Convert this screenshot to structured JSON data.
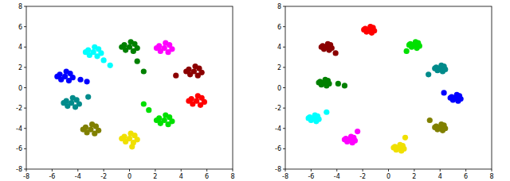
{
  "chart_data": [
    {
      "type": "scatter",
      "marker": "circle",
      "xlim": [
        -8,
        8
      ],
      "ylim": [
        -8,
        8
      ],
      "xticks": [
        -8,
        -6,
        -4,
        -2,
        0,
        2,
        4,
        6,
        8
      ],
      "yticks": [
        -8,
        -6,
        -4,
        -2,
        0,
        2,
        4,
        6,
        8
      ],
      "series": [
        {
          "color": "#008000",
          "x": [
            0,
            0.4,
            -0.4,
            0.3,
            -0.3,
            0.6,
            -0.6,
            0.1,
            0.6,
            1.1
          ],
          "values": [
            4,
            4.3,
            4.2,
            3.6,
            3.7,
            3.9,
            4,
            4.5,
            2.6,
            1.6
          ]
        },
        {
          "color": "#ff00ff",
          "x": [
            2.7,
            3.1,
            2.3,
            3,
            2.4,
            3.3,
            2.1,
            2.8
          ],
          "values": [
            3.9,
            4.2,
            4.1,
            3.5,
            3.6,
            3.8,
            3.9,
            4.4
          ]
        },
        {
          "color": "#8b0000",
          "x": [
            5,
            5.4,
            4.6,
            5.3,
            4.7,
            5.6,
            4.4,
            5.1,
            3.6
          ],
          "values": [
            1.6,
            1.9,
            1.8,
            1.2,
            1.3,
            1.5,
            1.6,
            2.1,
            1.2
          ]
        },
        {
          "color": "#ff0000",
          "x": [
            5.2,
            5.6,
            4.8,
            5.5,
            4.9,
            5.8,
            4.6,
            5.3
          ],
          "values": [
            -1.3,
            -1,
            -1.1,
            -1.7,
            -1.6,
            -1.4,
            -1.3,
            -0.8
          ]
        },
        {
          "color": "#00e000",
          "x": [
            2.7,
            3.1,
            2.3,
            3,
            2.4,
            3.3,
            2.1,
            2.8,
            1.5,
            1.1
          ],
          "values": [
            -3.2,
            -2.9,
            -3,
            -3.6,
            -3.5,
            -3.3,
            -3.2,
            -2.7,
            -2.2,
            -1.6
          ]
        },
        {
          "color": "#f0e000",
          "x": [
            0,
            0.4,
            -0.4,
            0.3,
            -0.3,
            0.6,
            -0.6,
            0.1,
            0.2
          ],
          "values": [
            -5,
            -4.7,
            -4.8,
            -5.4,
            -5.3,
            -5.1,
            -5,
            -4.5,
            -5.8
          ]
        },
        {
          "color": "#808000",
          "x": [
            -3,
            -2.6,
            -3.4,
            -2.7,
            -3.3,
            -2.4,
            -3.6,
            -2.9
          ],
          "values": [
            -4.1,
            -3.8,
            -3.9,
            -4.5,
            -4.4,
            -4.2,
            -4.1,
            -3.6
          ]
        },
        {
          "color": "#008b8b",
          "x": [
            -4.5,
            -4.1,
            -4.9,
            -4.2,
            -4.8,
            -3.9,
            -5.1,
            -4.4,
            -3.2
          ],
          "values": [
            -1.5,
            -1.2,
            -1.3,
            -1.9,
            -1.8,
            -1.6,
            -1.5,
            -1,
            -0.9
          ]
        },
        {
          "color": "#0000ff",
          "x": [
            -5,
            -4.6,
            -5.4,
            -4.7,
            -5.3,
            -4.4,
            -5.6,
            -4.9,
            -3.8,
            -3.3
          ],
          "values": [
            1.1,
            1.4,
            1.3,
            0.7,
            0.8,
            1,
            1.1,
            1.6,
            0.8,
            0.6
          ]
        },
        {
          "color": "#00ffff",
          "x": [
            -2.8,
            -2.4,
            -3.2,
            -2.5,
            -3.1,
            -2.2,
            -3.4,
            -2.7,
            -2,
            -1.5
          ],
          "values": [
            3.5,
            3.8,
            3.7,
            3.1,
            3.2,
            3.4,
            3.5,
            4,
            2.7,
            2.2
          ]
        }
      ]
    },
    {
      "type": "scatter",
      "marker": "circle",
      "xlim": [
        -8,
        8
      ],
      "ylim": [
        -8,
        8
      ],
      "xticks": [
        -8,
        -6,
        -4,
        -2,
        0,
        2,
        4,
        6,
        8
      ],
      "yticks": [
        -8,
        -6,
        -4,
        -2,
        0,
        2,
        4,
        6,
        8
      ],
      "series": [
        {
          "color": "#ff0000",
          "x": [
            -1.5,
            -1.2,
            -1.8,
            -1.3,
            -1.7,
            -1.1,
            -1.9,
            -1.4
          ],
          "values": [
            5.7,
            5.9,
            5.8,
            5.4,
            5.5,
            5.6,
            5.7,
            6
          ]
        },
        {
          "color": "#00e000",
          "x": [
            2,
            2.3,
            1.7,
            2.2,
            1.8,
            2.4,
            1.6,
            2.1,
            1.4
          ],
          "values": [
            4.2,
            4.4,
            4.3,
            3.9,
            4,
            4.1,
            4.2,
            4.5,
            3.6
          ]
        },
        {
          "color": "#008b8b",
          "x": [
            4,
            4.3,
            3.7,
            4.2,
            3.8,
            4.4,
            3.6,
            4.1,
            3.1
          ],
          "values": [
            1.9,
            2.1,
            2,
            1.6,
            1.7,
            1.8,
            1.9,
            2.2,
            1.3
          ]
        },
        {
          "color": "#0000ff",
          "x": [
            5.2,
            5.5,
            4.9,
            5.4,
            5,
            5.6,
            4.8,
            5.3,
            4.3
          ],
          "values": [
            -1,
            -0.8,
            -0.9,
            -1.3,
            -1.2,
            -1.1,
            -1,
            -0.7,
            -0.5
          ]
        },
        {
          "color": "#808000",
          "x": [
            4,
            4.3,
            3.7,
            4.2,
            3.8,
            4.4,
            3.6,
            4.1,
            3.2
          ],
          "values": [
            -3.9,
            -3.7,
            -3.8,
            -4.2,
            -4.1,
            -4,
            -3.9,
            -3.6,
            -3.2
          ]
        },
        {
          "color": "#f0e000",
          "x": [
            0.8,
            1.1,
            0.5,
            1,
            0.6,
            1.2,
            0.4,
            0.9,
            1.3
          ],
          "values": [
            -5.9,
            -5.7,
            -5.8,
            -6.2,
            -6.1,
            -6,
            -5.9,
            -5.6,
            -4.9
          ]
        },
        {
          "color": "#ff00ff",
          "x": [
            -3,
            -2.7,
            -3.3,
            -2.8,
            -3.2,
            -2.6,
            -3.4,
            -2.9,
            -2.4
          ],
          "values": [
            -5.1,
            -4.9,
            -5,
            -5.4,
            -5.3,
            -5.2,
            -5.1,
            -4.8,
            -4.3
          ]
        },
        {
          "color": "#00ffff",
          "x": [
            -5.8,
            -5.5,
            -6.1,
            -5.6,
            -6,
            -5.4,
            -6.2,
            -5.7,
            -4.8
          ],
          "values": [
            -3,
            -2.8,
            -2.9,
            -3.3,
            -3.2,
            -3.1,
            -3,
            -2.7,
            -2.4
          ]
        },
        {
          "color": "#008000",
          "x": [
            -5,
            -4.7,
            -5.3,
            -4.8,
            -5.2,
            -4.6,
            -5.4,
            -4.9,
            -3.9,
            -3.4
          ],
          "values": [
            0.5,
            0.7,
            0.6,
            0.2,
            0.3,
            0.4,
            0.5,
            0.8,
            0.4,
            0.2
          ]
        },
        {
          "color": "#8b0000",
          "x": [
            -4.8,
            -4.5,
            -5.1,
            -4.6,
            -5,
            -4.4,
            -5.2,
            -4.7,
            -4.1
          ],
          "values": [
            4,
            4.2,
            4.1,
            3.7,
            3.8,
            3.9,
            4,
            4.3,
            3.4
          ]
        }
      ]
    }
  ]
}
